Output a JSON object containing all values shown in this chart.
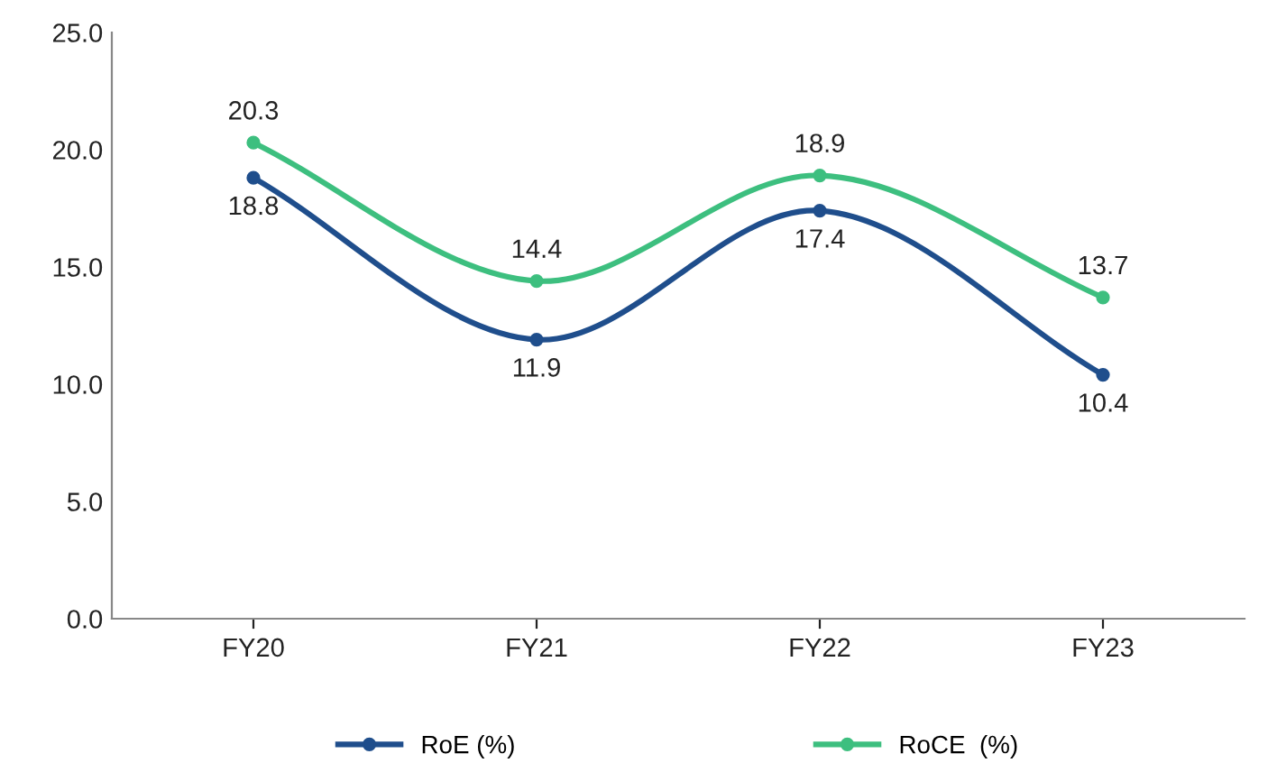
{
  "chart_data": {
    "type": "line",
    "categories": [
      "FY20",
      "FY21",
      "FY22",
      "FY23"
    ],
    "series": [
      {
        "name": "RoE (%)",
        "color": "#1f4e8c",
        "values": [
          18.8,
          11.9,
          17.4,
          10.4
        ]
      },
      {
        "name": "RoCE  (%)",
        "color": "#3dbf7f",
        "values": [
          20.3,
          14.4,
          18.9,
          13.7
        ]
      }
    ],
    "ylim": [
      0,
      25
    ],
    "yticks": [
      {
        "value": 0,
        "label": "0.0"
      },
      {
        "value": 5,
        "label": "5.0"
      },
      {
        "value": 10,
        "label": "10.0"
      },
      {
        "value": 15,
        "label": "15.0"
      },
      {
        "value": 20,
        "label": "20.0"
      },
      {
        "value": 25,
        "label": "25.0"
      }
    ],
    "grid": false,
    "legend": "bottom",
    "marker": "circle",
    "line_style": "solid",
    "data_labels": true
  }
}
